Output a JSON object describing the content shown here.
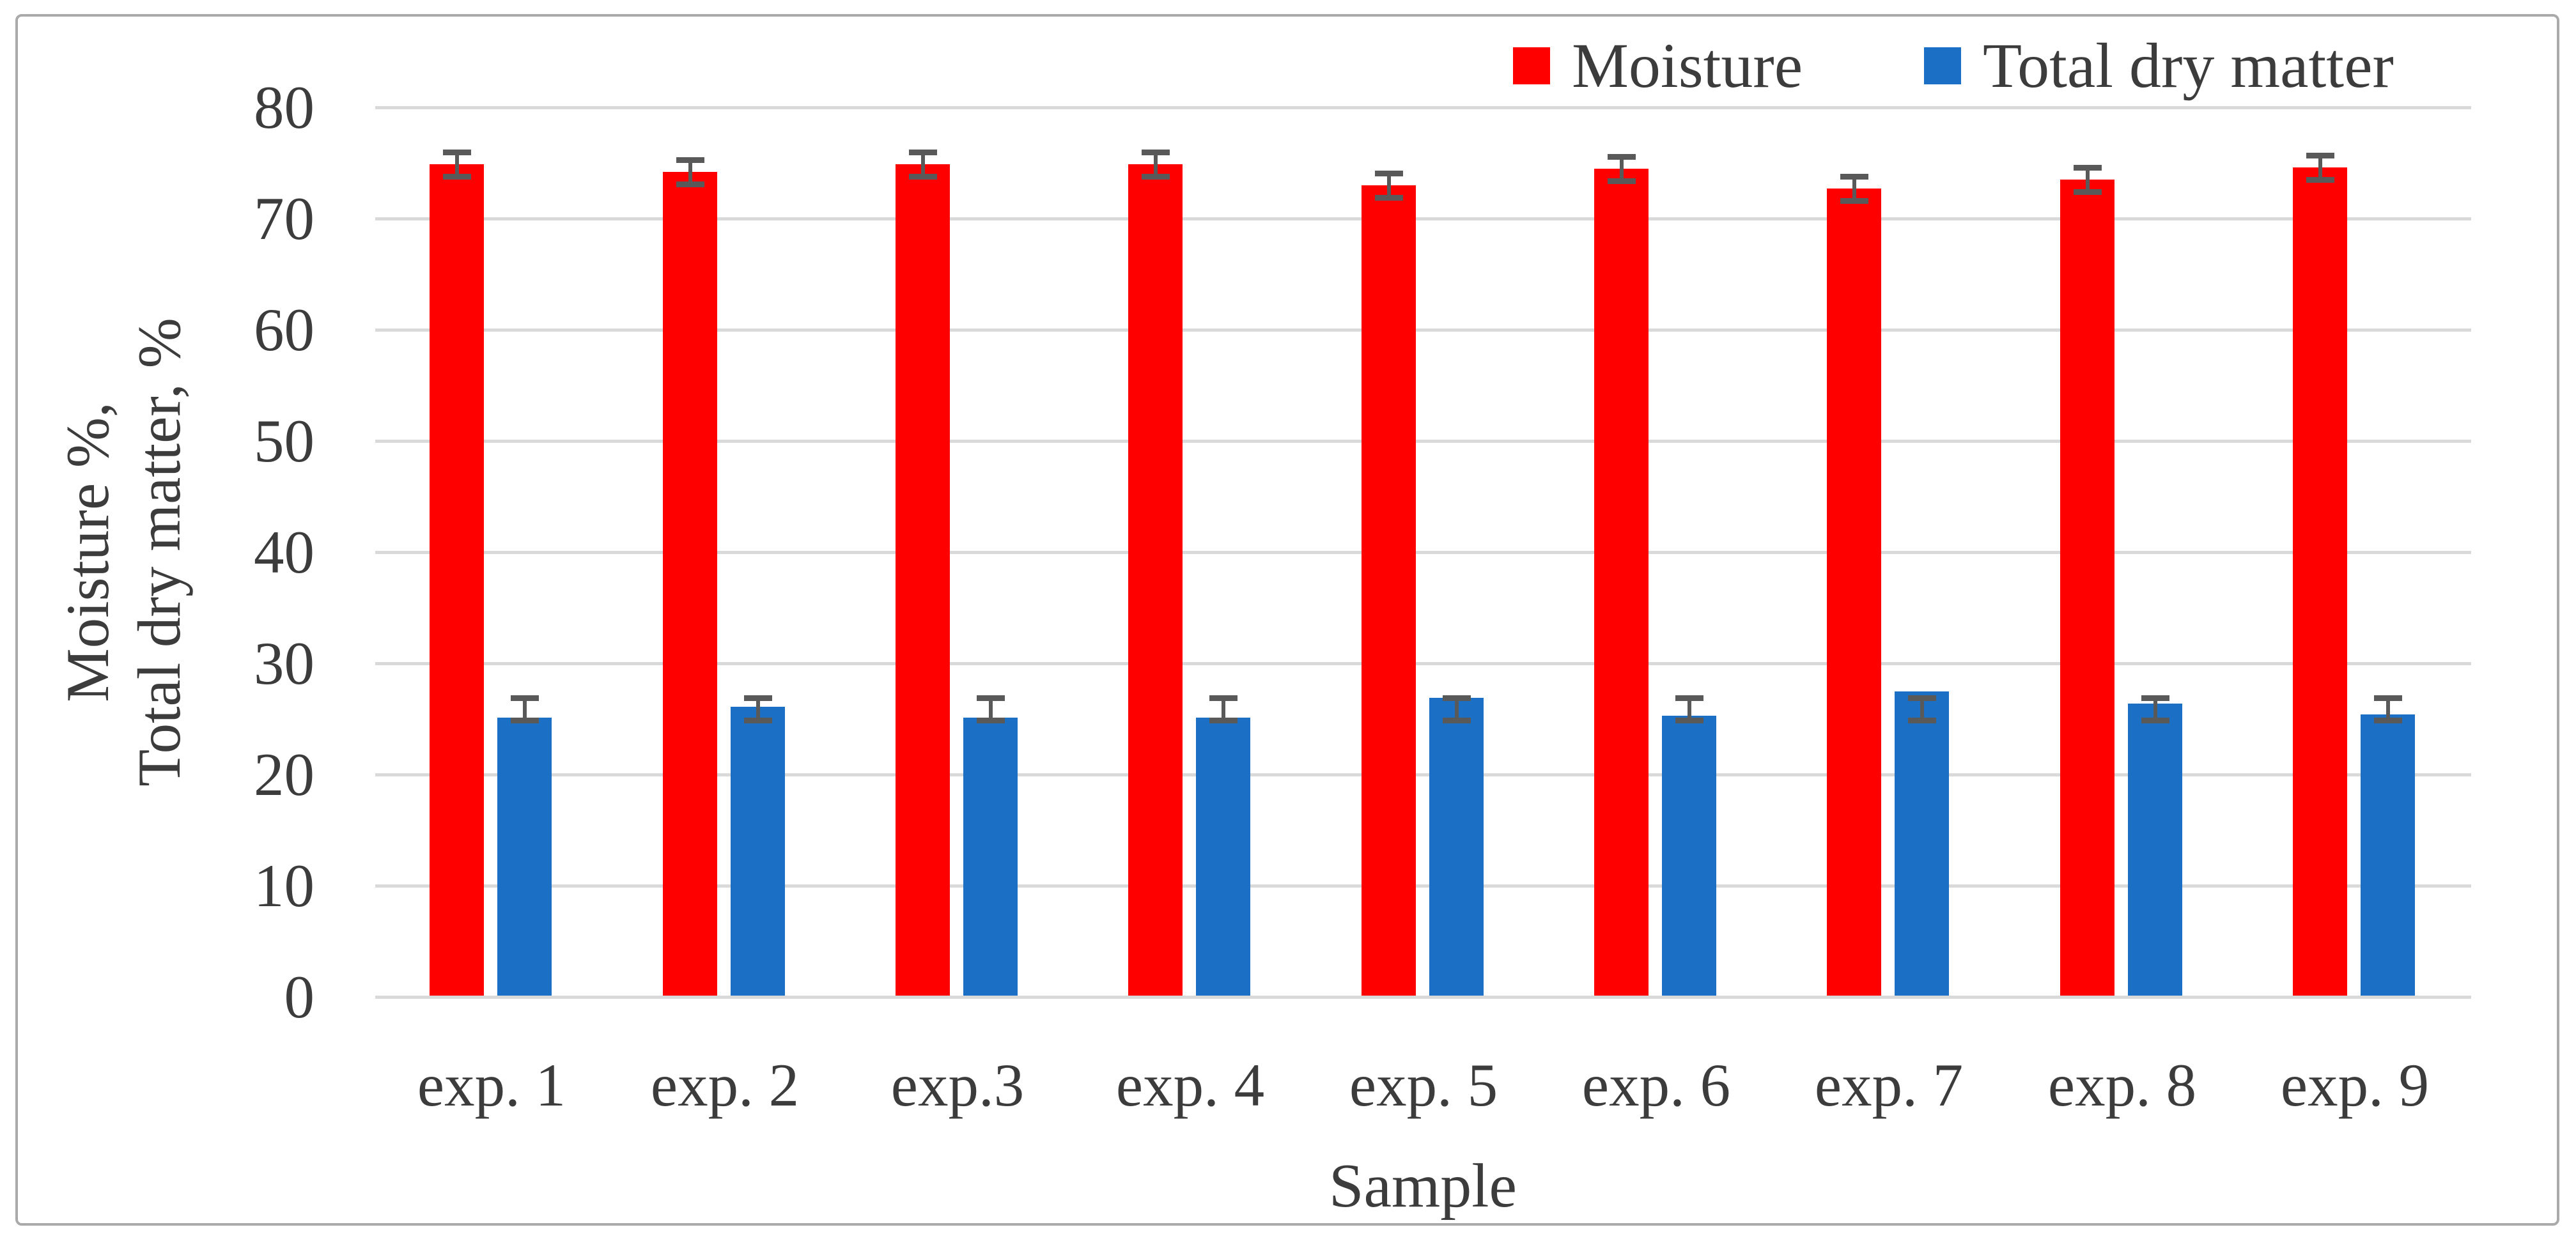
{
  "figure": {
    "kind": "grouped-bar-chart-figure",
    "background_color": "#ffffff",
    "border_color": "#aaaaaa"
  },
  "colors": {
    "moisture_red": "#ff0000",
    "dry_matter_blue": "#1b70c6",
    "gridline_gray": "#d9d9d9",
    "error_bar_gray": "#595959",
    "text_gray": "#3c3c3c"
  },
  "legend": {
    "items": [
      {
        "label": "Moisture",
        "color": "#ff0000"
      },
      {
        "label": "Total dry matter",
        "color": "#1b70c6"
      }
    ]
  },
  "chart_data": {
    "type": "bar",
    "title": "",
    "xlabel": "Sample",
    "ylabel_lines": [
      "Moisture %,",
      "Total dry matter, %"
    ],
    "ylabel": "Moisture %, Total dry matter, %",
    "ylim": [
      0,
      80
    ],
    "yticks": [
      0,
      10,
      20,
      30,
      40,
      50,
      60,
      70,
      80
    ],
    "grid": true,
    "legend_position": "top-right",
    "categories": [
      "exp. 1",
      "exp. 2",
      "exp.3",
      "exp. 4",
      "exp. 5",
      "exp. 6",
      "exp. 7",
      "exp. 8",
      "exp. 9"
    ],
    "series": [
      {
        "name": "Moisture",
        "color": "#ff0000",
        "values": [
          74.9,
          74.2,
          74.9,
          74.9,
          73.0,
          74.5,
          72.7,
          73.5,
          74.6
        ],
        "error_plus_minus": 1.1
      },
      {
        "name": "Total dry matter",
        "color": "#1b70c6",
        "values": [
          25.1,
          26.1,
          25.1,
          25.1,
          26.9,
          25.3,
          27.5,
          26.4,
          25.4
        ],
        "error_band_abs": {
          "low": 24.9,
          "high": 26.9
        }
      }
    ]
  }
}
